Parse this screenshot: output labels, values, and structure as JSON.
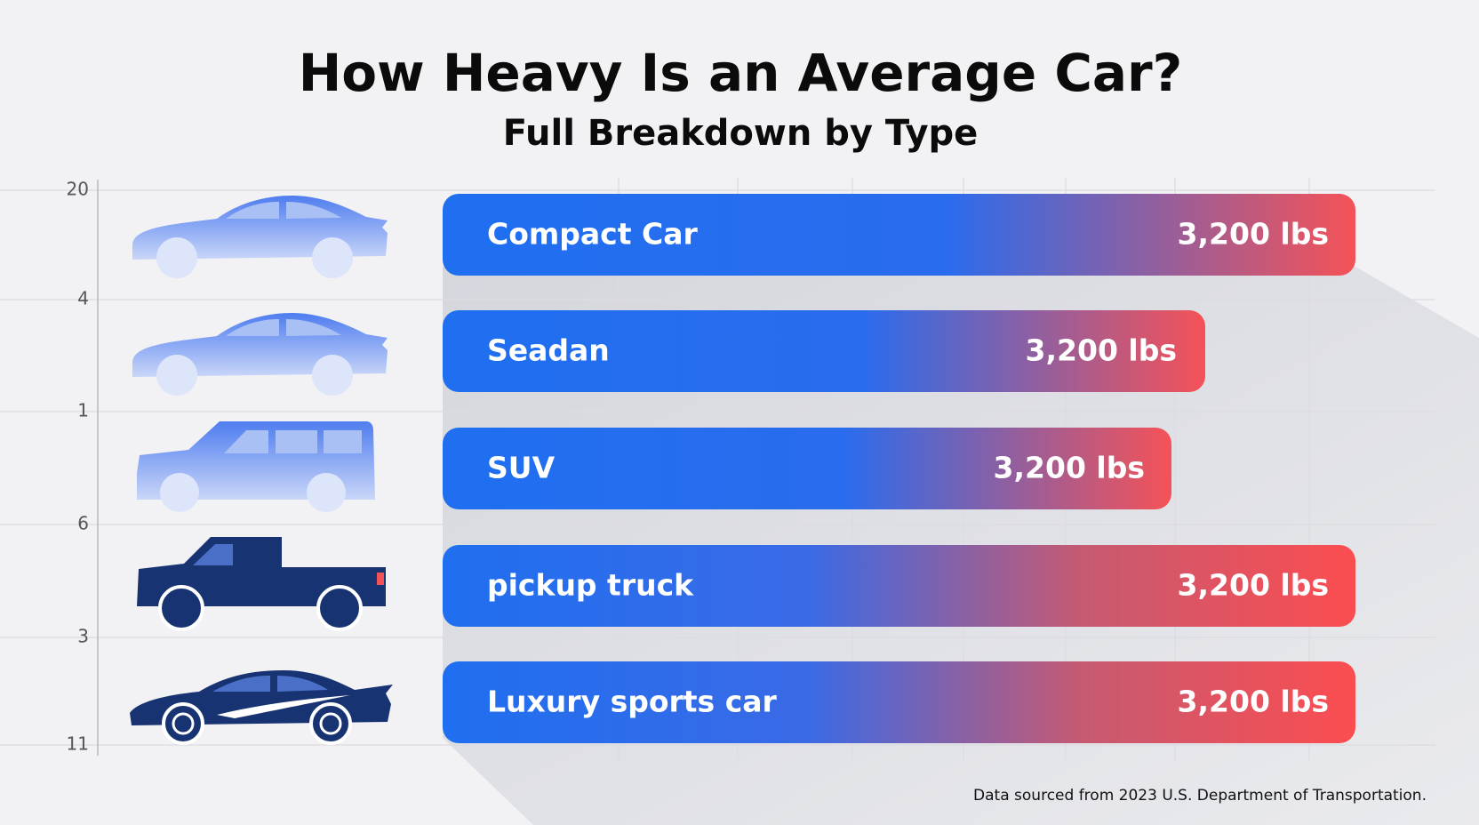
{
  "header": {
    "title": "How Heavy Is an Average Car?",
    "subtitle": "Full Breakdown by Type"
  },
  "axis": {
    "labels": [
      "20",
      "4",
      "1",
      "6",
      "3",
      "11"
    ]
  },
  "rows": [
    {
      "label": "Compact Car",
      "value": "3,200 lbs"
    },
    {
      "label": "Seadan",
      "value": "3,200 lbs"
    },
    {
      "label": "SUV",
      "value": "3,200 lbs"
    },
    {
      "label": "pickup truck",
      "value": "3,200 lbs"
    },
    {
      "label": "Luxury sports car",
      "value": "3,200 lbs"
    }
  ],
  "footer": {
    "source": "Data sourced from 2023 U.S. Department of Transportation."
  }
}
